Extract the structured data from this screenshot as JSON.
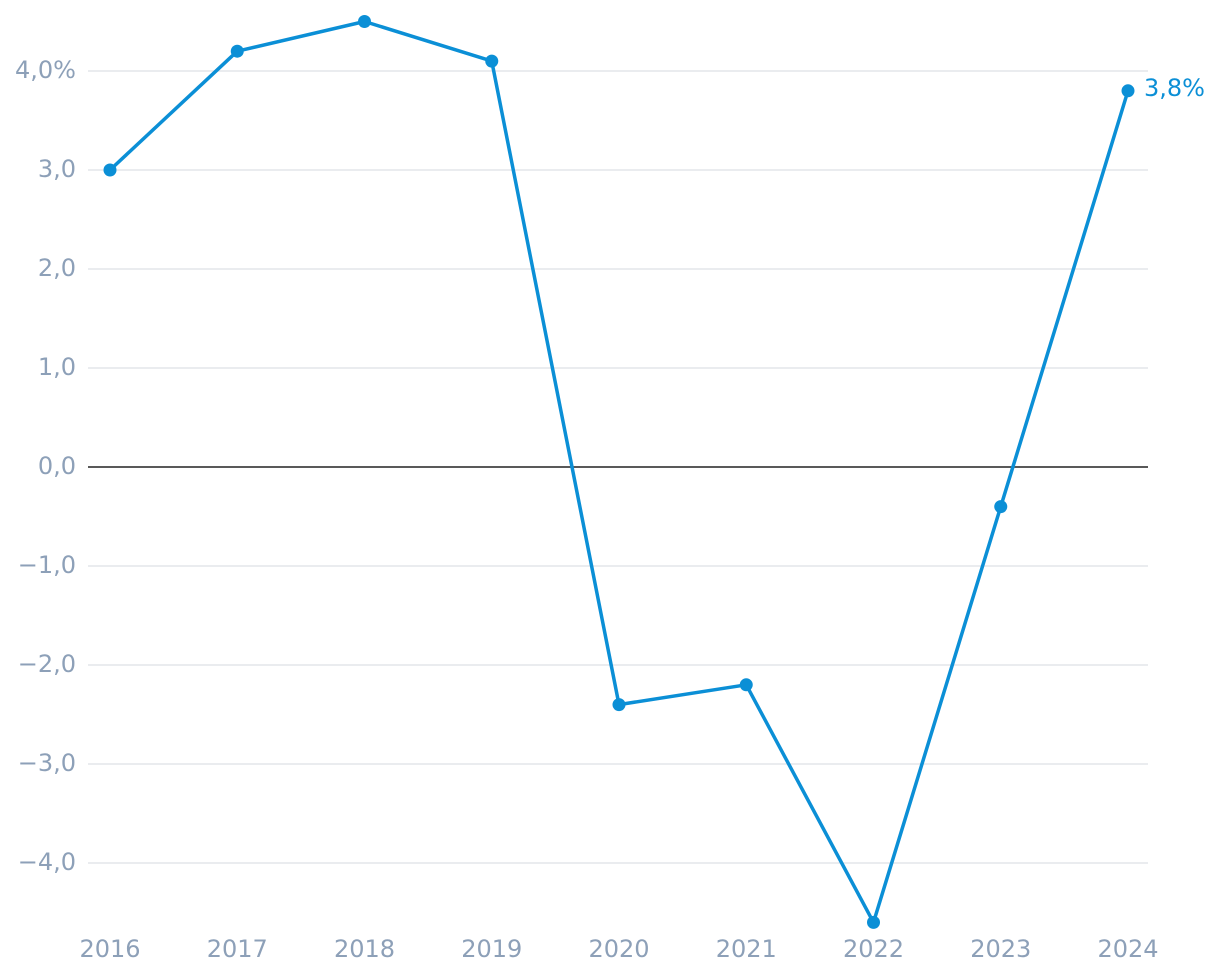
{
  "chart_data": {
    "type": "line",
    "categories": [
      "2016",
      "2017",
      "2018",
      "2019",
      "2020",
      "2021",
      "2022",
      "2023",
      "2024"
    ],
    "series": [
      {
        "color": "#0b8fd6",
        "values": [
          3.0,
          4.2,
          4.5,
          4.1,
          -2.4,
          -2.2,
          -4.6,
          -0.4,
          3.8
        ],
        "value_labels": [
          null,
          null,
          null,
          null,
          null,
          null,
          null,
          null,
          "3,8%"
        ]
      }
    ],
    "ylim": [
      -4.6,
      4.5
    ],
    "yticks": [
      {
        "value": 4,
        "label": "4,0%"
      },
      {
        "value": 3,
        "label": "3,0"
      },
      {
        "value": 2,
        "label": "2,0"
      },
      {
        "value": 1,
        "label": "1,0"
      },
      {
        "value": 0,
        "label": "0,0"
      },
      {
        "value": -1,
        "label": "−1,0"
      },
      {
        "value": -2,
        "label": "−2,0"
      },
      {
        "value": -3,
        "label": "−3,0"
      },
      {
        "value": -4,
        "label": "−4,0"
      }
    ],
    "grid": true
  }
}
